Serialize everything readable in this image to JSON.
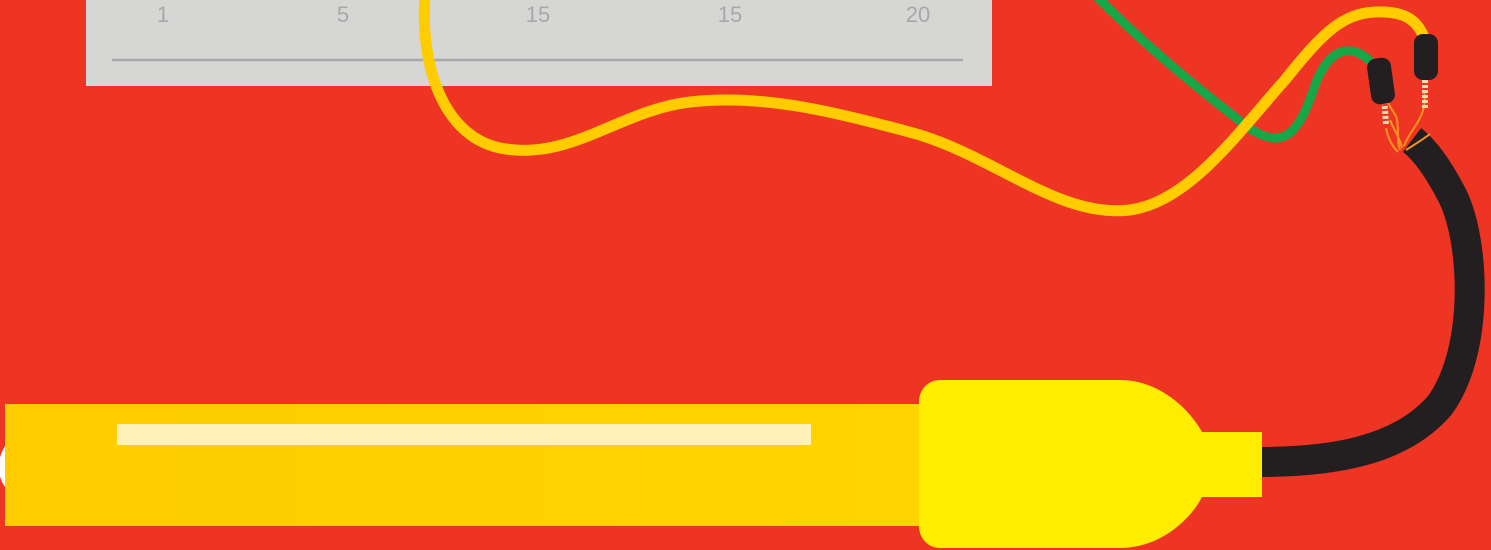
{
  "breadboard": {
    "column_labels": [
      "1",
      "5",
      "15",
      "15",
      "20"
    ]
  },
  "colors": {
    "background": "#ee3524",
    "breadboard": "#d6d6d4",
    "wire_yellow": "#ffcc00",
    "wire_green": "#15a748",
    "cable_black": "#231f20",
    "probe_body": "#ffd200",
    "probe_cap": "#ffed00",
    "probe_highlight": "#fff1b8"
  },
  "icons": {
    "probe": "sensor-probe-icon",
    "connector": "pin-header-icon"
  }
}
